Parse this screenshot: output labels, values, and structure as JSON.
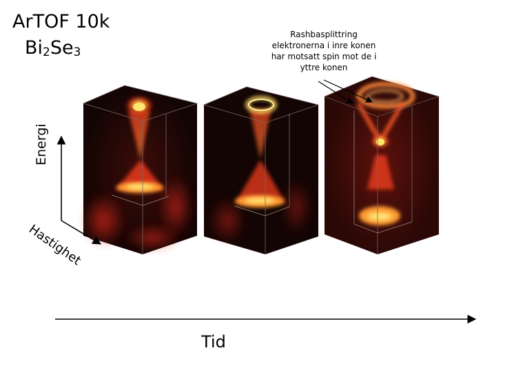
{
  "title": {
    "line1": "ArTOF 10k",
    "formula_base1": "Bi",
    "formula_sub1": "2",
    "formula_base2": "Se",
    "formula_sub2": "3"
  },
  "annotation": {
    "lines": [
      "Rashbasplittring",
      "elektronerna i inre konen",
      "har motsatt spin mot de i",
      "yttre konen"
    ]
  },
  "axes": {
    "energy_label": "Energi",
    "speed_label": "Hastighet",
    "time_label": "Tid"
  },
  "colors": {
    "cube_bg": "#120504",
    "glow_red": "#e2291a",
    "glow_orange": "#ff8a22",
    "glow_yellow": "#ffe36a"
  }
}
